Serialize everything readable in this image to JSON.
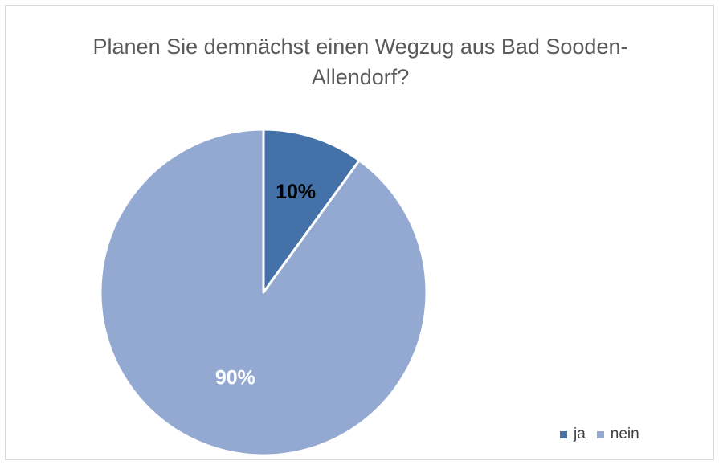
{
  "chart_data": {
    "type": "pie",
    "title_lines": [
      "Planen Sie demnächst einen Wegzug aus Bad Sooden-",
      "Allendorf?"
    ],
    "categories": [
      "ja",
      "nein"
    ],
    "values": [
      10,
      90
    ],
    "data_labels": [
      "10%",
      "90%"
    ],
    "colors": [
      "#4472a8",
      "#94a9d2"
    ],
    "label_colors": [
      "#000000",
      "#ffffff"
    ],
    "legend_position": "bottom-right"
  }
}
